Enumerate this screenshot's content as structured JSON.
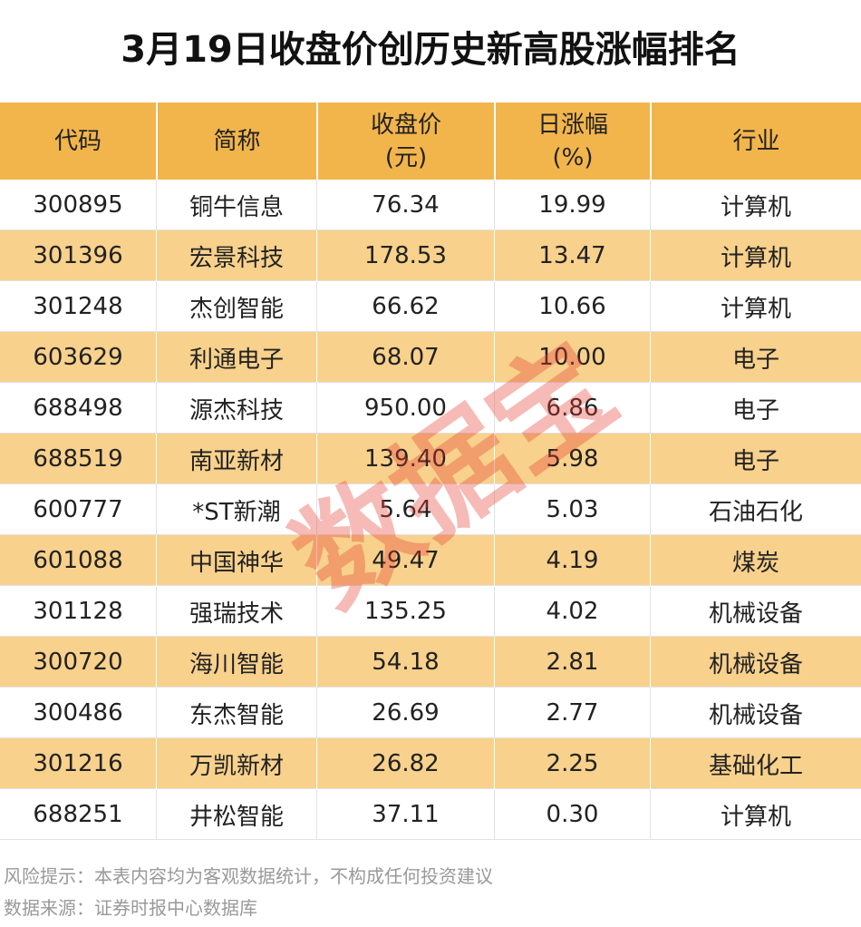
{
  "header": {
    "title": "3月19日收盘价创历史新高股涨幅排名"
  },
  "table": {
    "columns": [
      [
        "代码"
      ],
      [
        "简称"
      ],
      [
        "收盘价",
        "(元)"
      ],
      [
        "日涨幅",
        "(%)"
      ],
      [
        "行业"
      ]
    ],
    "rows": [
      [
        "300895",
        "铜牛信息",
        "76.34",
        "19.99",
        "计算机"
      ],
      [
        "301396",
        "宏景科技",
        "178.53",
        "13.47",
        "计算机"
      ],
      [
        "301248",
        "杰创智能",
        "66.62",
        "10.66",
        "计算机"
      ],
      [
        "603629",
        "利通电子",
        "68.07",
        "10.00",
        "电子"
      ],
      [
        "688498",
        "源杰科技",
        "950.00",
        "6.86",
        "电子"
      ],
      [
        "688519",
        "南亚新材",
        "139.40",
        "5.98",
        "电子"
      ],
      [
        "600777",
        "*ST新潮",
        "5.64",
        "5.03",
        "石油石化"
      ],
      [
        "601088",
        "中国神华",
        "49.47",
        "4.19",
        "煤炭"
      ],
      [
        "301128",
        "强瑞技术",
        "135.25",
        "4.02",
        "机械设备"
      ],
      [
        "300720",
        "海川智能",
        "54.18",
        "2.81",
        "机械设备"
      ],
      [
        "300486",
        "东杰智能",
        "26.69",
        "2.77",
        "机械设备"
      ],
      [
        "301216",
        "万凯新材",
        "26.82",
        "2.25",
        "基础化工"
      ],
      [
        "688251",
        "井松智能",
        "37.11",
        "0.30",
        "计算机"
      ]
    ]
  },
  "footer": {
    "lines": [
      "风险提示：本表内容均为客观数据统计，不构成任何投资建议",
      "数据来源：证券时报中心数据库"
    ]
  },
  "watermark": "数据宝"
}
